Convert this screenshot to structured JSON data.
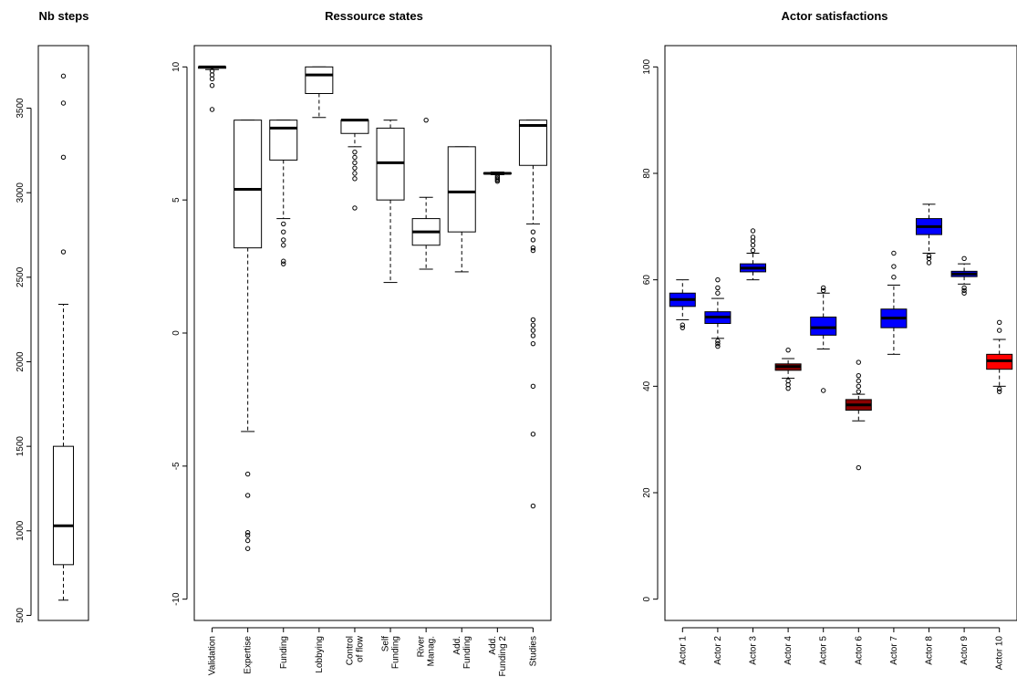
{
  "chart_data": [
    {
      "type": "boxplot",
      "title": "Nb steps",
      "ylim": [
        470,
        3870
      ],
      "yticks": [
        500,
        1000,
        1500,
        2000,
        2500,
        3000,
        3500
      ],
      "boxes": [
        {
          "name": "",
          "fill": "#ffffff",
          "whisker_low": 590,
          "q1": 800,
          "median": 1030,
          "q3": 1500,
          "whisker_high": 2340,
          "outliers": [
            2650,
            3210,
            3530,
            3690
          ]
        }
      ]
    },
    {
      "type": "boxplot",
      "title": "Ressource states",
      "ylim": [
        -10.8,
        10.8
      ],
      "yticks": [
        -10,
        -5,
        0,
        5,
        10
      ],
      "boxes": [
        {
          "name": "Validation",
          "fill": "#ffffff",
          "whisker_low": 9.9,
          "q1": 9.95,
          "median": 10,
          "q3": 10,
          "whisker_high": 10,
          "outliers": [
            9.85,
            9.7,
            9.55,
            9.3,
            8.4
          ]
        },
        {
          "name": "Expertise",
          "fill": "#ffffff",
          "whisker_low": -3.7,
          "q1": 3.2,
          "median": 5.4,
          "q3": 8.0,
          "whisker_high": 8.0,
          "outliers": [
            -5.3,
            -6.1,
            -7.5,
            -7.6,
            -7.8,
            -8.1
          ]
        },
        {
          "name": "Funding",
          "fill": "#ffffff",
          "whisker_low": 4.3,
          "q1": 6.5,
          "median": 7.7,
          "q3": 8.0,
          "whisker_high": 8.0,
          "outliers": [
            4.1,
            3.8,
            3.5,
            3.3,
            2.7,
            2.6
          ]
        },
        {
          "name": "Lobbying",
          "fill": "#ffffff",
          "whisker_low": 8.1,
          "q1": 9.0,
          "median": 9.7,
          "q3": 10,
          "whisker_high": 10,
          "outliers": []
        },
        {
          "name": "Control\nof flow",
          "fill": "#ffffff",
          "whisker_low": 7.0,
          "q1": 7.5,
          "median": 8.0,
          "q3": 8.0,
          "whisker_high": 8.0,
          "outliers": [
            6.8,
            6.6,
            6.4,
            6.2,
            6.0,
            5.8,
            4.7
          ]
        },
        {
          "name": "Self\nFunding",
          "fill": "#ffffff",
          "whisker_low": 1.9,
          "q1": 5.0,
          "median": 6.4,
          "q3": 7.7,
          "whisker_high": 8.0,
          "outliers": []
        },
        {
          "name": "River\nManag.",
          "fill": "#ffffff",
          "whisker_low": 2.4,
          "q1": 3.3,
          "median": 3.8,
          "q3": 4.3,
          "whisker_high": 5.1,
          "outliers": [
            8.0
          ]
        },
        {
          "name": "Add.\nFunding",
          "fill": "#ffffff",
          "whisker_low": 2.3,
          "q1": 3.8,
          "median": 5.3,
          "q3": 7.0,
          "whisker_high": 7.0,
          "outliers": []
        },
        {
          "name": "Add.\nFunding 2",
          "fill": "#ffffff",
          "whisker_low": 5.95,
          "q1": 5.98,
          "median": 6.0,
          "q3": 6.02,
          "whisker_high": 6.05,
          "outliers": [
            5.9,
            5.85,
            5.8,
            5.75,
            5.7
          ]
        },
        {
          "name": "Studies",
          "fill": "#ffffff",
          "whisker_low": 4.1,
          "q1": 6.3,
          "median": 7.8,
          "q3": 8.0,
          "whisker_high": 8.0,
          "outliers": [
            3.8,
            3.5,
            3.2,
            3.1,
            0.5,
            0.3,
            0.1,
            -0.1,
            -0.4,
            -2.0,
            -3.8,
            -6.5
          ]
        }
      ]
    },
    {
      "type": "boxplot",
      "title": "Actor satisfactions",
      "ylim": [
        -4,
        104
      ],
      "yticks": [
        0,
        20,
        40,
        60,
        80,
        100
      ],
      "boxes": [
        {
          "name": "Actor 1",
          "fill": "#0000ff",
          "whisker_low": 52.5,
          "q1": 55.0,
          "median": 56.3,
          "q3": 57.5,
          "whisker_high": 60.0,
          "outliers": [
            51.5,
            51.0
          ]
        },
        {
          "name": "Actor 2",
          "fill": "#0000ff",
          "whisker_low": 49.0,
          "q1": 51.8,
          "median": 53.0,
          "q3": 54.0,
          "whisker_high": 56.5,
          "outliers": [
            48.5,
            48.0,
            47.5,
            57.5,
            58.5,
            60.0
          ]
        },
        {
          "name": "Actor 3",
          "fill": "#0000ff",
          "whisker_low": 60.0,
          "q1": 61.5,
          "median": 62.2,
          "q3": 63.0,
          "whisker_high": 65.0,
          "outliers": [
            65.5,
            66.5,
            67.3,
            68.0,
            69.2
          ]
        },
        {
          "name": "Actor 4",
          "fill": "#8b0000",
          "whisker_low": 41.5,
          "q1": 43.0,
          "median": 43.7,
          "q3": 44.2,
          "whisker_high": 45.2,
          "outliers": [
            41.0,
            40.3,
            39.6,
            46.8
          ]
        },
        {
          "name": "Actor 5",
          "fill": "#0000ff",
          "whisker_low": 47.0,
          "q1": 49.6,
          "median": 51.0,
          "q3": 53.0,
          "whisker_high": 57.5,
          "outliers": [
            58.0,
            58.5,
            39.2
          ]
        },
        {
          "name": "Actor 6",
          "fill": "#8b0000",
          "whisker_low": 33.5,
          "q1": 35.5,
          "median": 36.5,
          "q3": 37.5,
          "whisker_high": 38.5,
          "outliers": [
            39.0,
            40.0,
            41.0,
            42.0,
            44.5,
            24.7
          ]
        },
        {
          "name": "Actor 7",
          "fill": "#0000ff",
          "whisker_low": 46.0,
          "q1": 51.0,
          "median": 52.8,
          "q3": 54.5,
          "whisker_high": 59.0,
          "outliers": [
            60.5,
            62.5,
            65.0
          ]
        },
        {
          "name": "Actor 8",
          "fill": "#0000ff",
          "whisker_low": 65.0,
          "q1": 68.5,
          "median": 70.0,
          "q3": 71.5,
          "whisker_high": 74.2,
          "outliers": [
            64.5,
            64.0,
            63.2
          ]
        },
        {
          "name": "Actor 9",
          "fill": "#0000ff",
          "whisker_low": 59.2,
          "q1": 60.6,
          "median": 61.1,
          "q3": 61.6,
          "whisker_high": 63.0,
          "outliers": [
            58.5,
            58.0,
            57.5,
            64.0
          ]
        },
        {
          "name": "Actor 10",
          "fill": "#ff0000",
          "whisker_low": 40.0,
          "q1": 43.2,
          "median": 44.8,
          "q3": 46.0,
          "whisker_high": 48.8,
          "outliers": [
            39.5,
            39.0,
            50.5,
            52.0
          ]
        }
      ]
    }
  ]
}
